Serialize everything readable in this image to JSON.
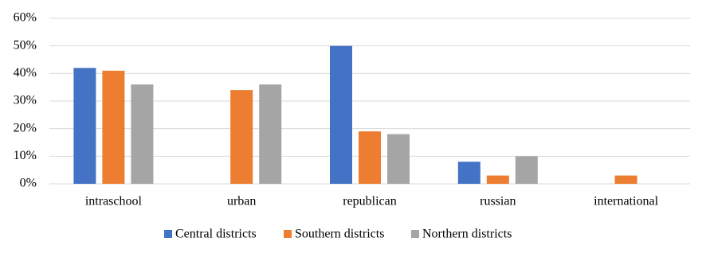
{
  "chart_data": {
    "type": "bar",
    "categories": [
      "intraschool",
      "urban",
      "republican",
      "russian",
      "international"
    ],
    "series": [
      {
        "name": "Central districts",
        "color": "#4472c4",
        "values": [
          42,
          0,
          50,
          8,
          0
        ]
      },
      {
        "name": "Southern districts",
        "color": "#ed7d31",
        "values": [
          41,
          34,
          19,
          3,
          3
        ]
      },
      {
        "name": "Northern districts",
        "color": "#a5a5a5",
        "values": [
          36,
          36,
          18,
          10,
          0
        ]
      }
    ],
    "ylim": [
      0,
      60
    ],
    "yticks": [
      {
        "value": 0,
        "label": "0%"
      },
      {
        "value": 10,
        "label": "10%"
      },
      {
        "value": 20,
        "label": "20%"
      },
      {
        "value": 30,
        "label": "30%"
      },
      {
        "value": 40,
        "label": "40%"
      },
      {
        "value": 50,
        "label": "50%"
      },
      {
        "value": 60,
        "label": "60%"
      }
    ],
    "grid": true,
    "legend": "bottom"
  }
}
